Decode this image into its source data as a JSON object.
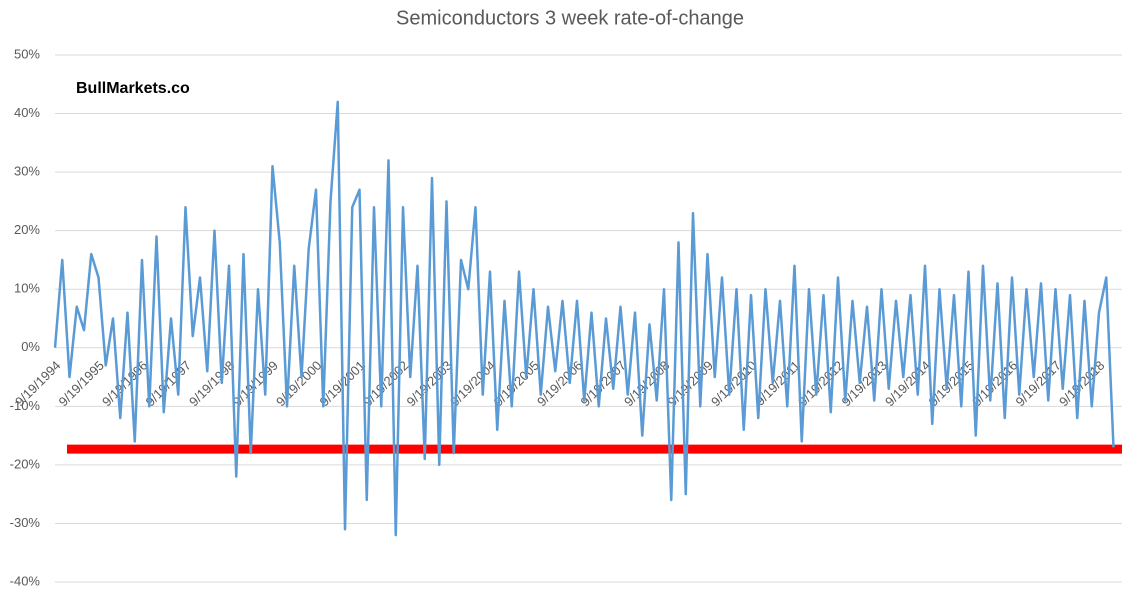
{
  "chart_data": {
    "type": "line",
    "title": "Semiconductors 3 week rate-of-change",
    "annotation": "BullMarkets.co",
    "categories": [
      "9/19/1994",
      null,
      null,
      null,
      null,
      null,
      "9/19/1995",
      null,
      null,
      null,
      null,
      null,
      "9/19/1996",
      null,
      null,
      null,
      null,
      null,
      "9/19/1997",
      null,
      null,
      null,
      null,
      null,
      "9/19/1998",
      null,
      null,
      null,
      null,
      null,
      "9/19/1999",
      null,
      null,
      null,
      null,
      null,
      "9/19/2000",
      null,
      null,
      null,
      null,
      null,
      "9/19/2001",
      null,
      null,
      null,
      null,
      null,
      "9/19/2002",
      null,
      null,
      null,
      null,
      null,
      "9/19/2003",
      null,
      null,
      null,
      null,
      null,
      "9/19/2004",
      null,
      null,
      null,
      null,
      null,
      "9/19/2005",
      null,
      null,
      null,
      null,
      null,
      "9/19/2006",
      null,
      null,
      null,
      null,
      null,
      "9/19/2007",
      null,
      null,
      null,
      null,
      null,
      "9/19/2008",
      null,
      null,
      null,
      null,
      null,
      "9/19/2009",
      null,
      null,
      null,
      null,
      null,
      "9/19/2010",
      null,
      null,
      null,
      null,
      null,
      "9/19/2011",
      null,
      null,
      null,
      null,
      null,
      "9/19/2012",
      null,
      null,
      null,
      null,
      null,
      "9/19/2013",
      null,
      null,
      null,
      null,
      null,
      "9/19/2014",
      null,
      null,
      null,
      null,
      null,
      "9/19/2015",
      null,
      null,
      null,
      null,
      null,
      "9/19/2016",
      null,
      null,
      null,
      null,
      null,
      "9/19/2017",
      null,
      null,
      null,
      null,
      null,
      "9/19/2018",
      null,
      null
    ],
    "series": [
      {
        "color": "#5b9bd5",
        "values": [
          0,
          15,
          -5,
          7,
          3,
          16,
          12,
          -3,
          5,
          -12,
          6,
          -16,
          15,
          -10,
          19,
          -11,
          5,
          -8,
          24,
          2,
          12,
          -4,
          20,
          -6,
          14,
          -22,
          16,
          -18,
          10,
          -8,
          31,
          18,
          -10,
          14,
          -5,
          17,
          27,
          -10,
          25,
          42,
          -31,
          24,
          27,
          -26,
          24,
          -10,
          32,
          -32,
          24,
          -5,
          14,
          -19,
          29,
          -20,
          25,
          -18,
          15,
          10,
          24,
          -8,
          13,
          -14,
          8,
          -10,
          13,
          -5,
          10,
          -8,
          7,
          -4,
          8,
          -6,
          8,
          -9,
          6,
          -10,
          5,
          -7,
          7,
          -8,
          6,
          -15,
          4,
          -9,
          10,
          -26,
          18,
          -25,
          23,
          -10,
          16,
          -5,
          12,
          -8,
          10,
          -14,
          9,
          -12,
          10,
          -6,
          8,
          -10,
          14,
          -16,
          10,
          -8,
          9,
          -11,
          12,
          -9,
          8,
          -6,
          7,
          -9,
          10,
          -7,
          8,
          -5,
          9,
          -8,
          14,
          -13,
          10,
          -7,
          9,
          -10,
          13,
          -15,
          14,
          -9,
          11,
          -12,
          12,
          -8,
          10,
          -5,
          11,
          -9,
          10,
          -7,
          9,
          -12,
          8,
          -10,
          6,
          12,
          -17
        ]
      }
    ],
    "reference_line": {
      "value": -17.3,
      "color": "#ff0000"
    },
    "ylim": [
      -40,
      50
    ],
    "yticks": [
      {
        "value": -40,
        "label": "-40%"
      },
      {
        "value": -30,
        "label": "-30%"
      },
      {
        "value": -20,
        "label": "-20%"
      },
      {
        "value": -10,
        "label": "-10%"
      },
      {
        "value": 0,
        "label": "0%"
      },
      {
        "value": 10,
        "label": "10%"
      },
      {
        "value": 20,
        "label": "20%"
      },
      {
        "value": 30,
        "label": "30%"
      },
      {
        "value": 40,
        "label": "40%"
      },
      {
        "value": 50,
        "label": "50%"
      }
    ],
    "grid": true
  }
}
